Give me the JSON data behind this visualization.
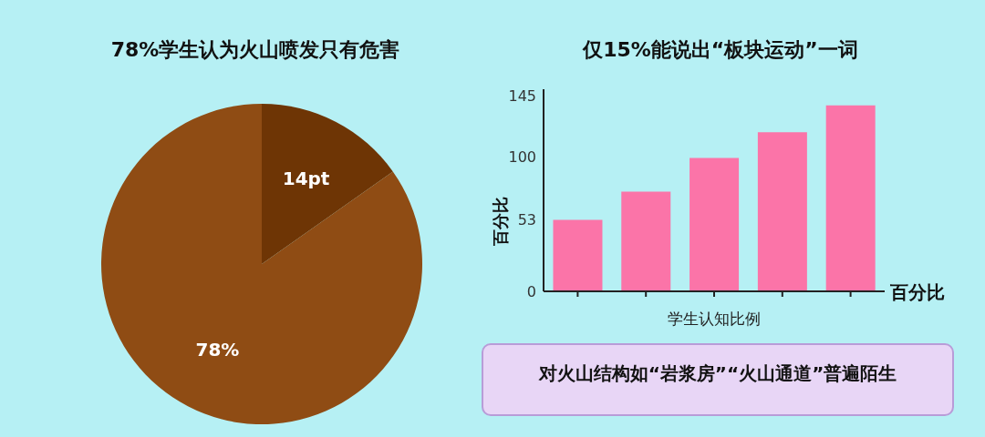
{
  "chart_data": [
    {
      "type": "pie",
      "title": "78%学生认为火山喷发只有危害",
      "categories": [
        null,
        null
      ],
      "values": [
        14,
        78
      ],
      "colors": [
        "#6e3505",
        "#8f4c14"
      ],
      "value_labels": [
        "14pt",
        "78%"
      ],
      "legend": false
    },
    {
      "type": "bar",
      "title": "仅15%能说出“板块运动”一词",
      "categories": [
        null,
        null,
        null,
        null,
        null
      ],
      "values": [
        53,
        74,
        99,
        118,
        138
      ],
      "color": "#fb74a8",
      "ylim": [
        0,
        150
      ],
      "yticks": [
        0,
        53,
        100,
        145
      ],
      "ylabel": "百分比",
      "xlabel": "学生认知比例",
      "annotations": [
        "百分比"
      ],
      "grid": false
    },
    {
      "type": "other",
      "title": "对火山结构如“岩浆房”“火山通道”普遍陌生"
    }
  ]
}
